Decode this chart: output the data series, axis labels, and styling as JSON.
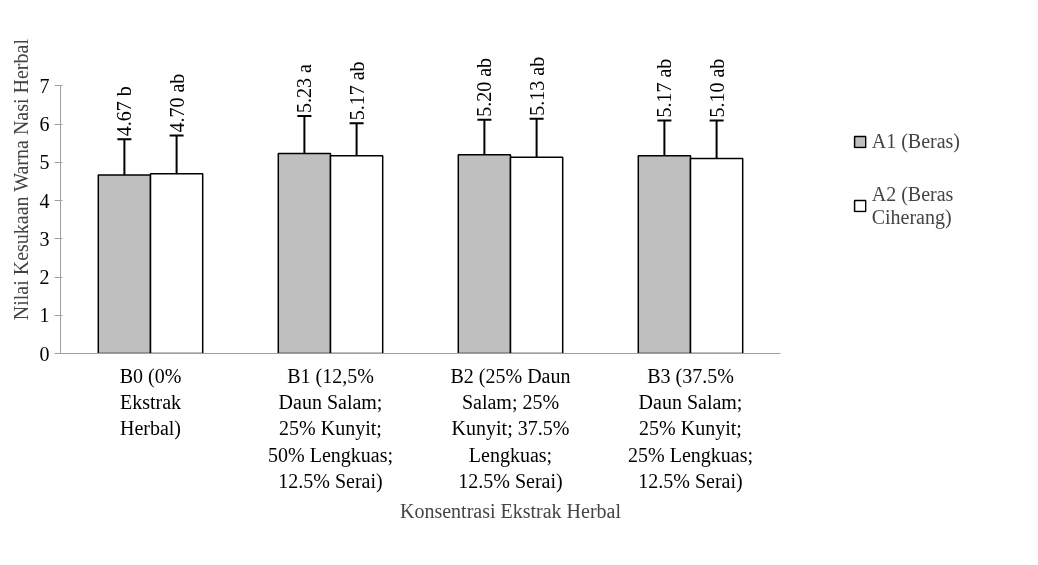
{
  "chart_data": {
    "type": "bar",
    "xlabel": "Konsentrasi Ekstrak Herbal",
    "ylabel": "Nilai Kesukaan Warna Nasi Herbal",
    "categories": [
      "B0 (0% Ekstrak Herbal)",
      "B1 (12,5% Daun Salam; 25% Kunyit; 50% Lengkuas; 12.5% Serai)",
      "B2 (25% Daun Salam; 25% Kunyit; 37.5% Lengkuas; 12.5% Serai)",
      "B3 (37.5% Daun Salam; 25% Kunyit; 25% Lengkuas; 12.5% Serai)"
    ],
    "series": [
      {
        "name": "A1 (Beras)",
        "color": "#bfbfbf",
        "values": [
          4.67,
          5.23,
          5.2,
          5.17
        ],
        "errors": [
          0.93,
          0.98,
          0.91,
          0.92
        ],
        "value_labels": [
          "4.67 b",
          "5.23 a",
          "5.20 ab",
          "5.17 ab"
        ]
      },
      {
        "name": "A2 (Beras Ciherang)",
        "color": "#ffffff",
        "values": [
          4.7,
          5.17,
          5.13,
          5.1
        ],
        "errors": [
          1.0,
          0.85,
          1.01,
          0.99
        ],
        "value_labels": [
          "4.70 ab",
          "5.17 ab",
          "5.13 ab",
          "5.10 ab"
        ]
      }
    ],
    "ylim": [
      0,
      7
    ],
    "yticks": [
      0,
      1,
      2,
      3,
      4,
      5,
      6,
      7
    ],
    "grid": false,
    "legend": "right"
  }
}
